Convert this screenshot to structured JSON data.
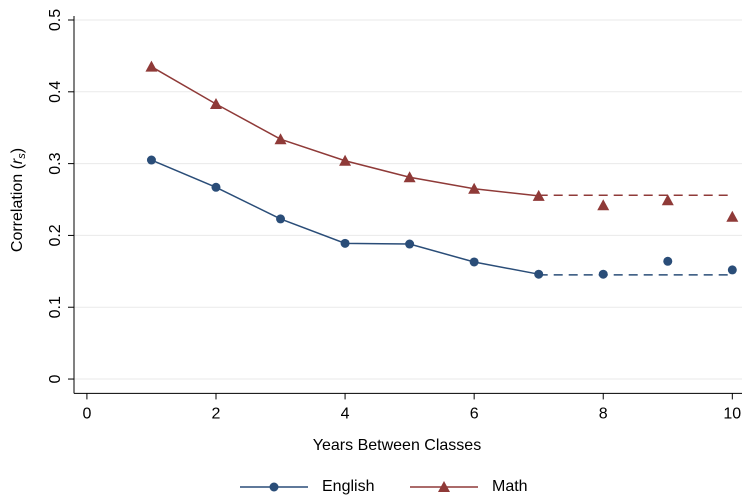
{
  "chart_data": {
    "type": "line",
    "x": [
      1,
      2,
      3,
      4,
      5,
      6,
      7,
      8,
      9,
      10
    ],
    "series": [
      {
        "name": "English",
        "color": "#2a4d78",
        "marker": "circle",
        "values": [
          0.305,
          0.267,
          0.223,
          0.189,
          0.188,
          0.163,
          0.146,
          0.146,
          0.164,
          0.152
        ],
        "plateau": {
          "from": 7,
          "to": 10,
          "value": 0.145
        }
      },
      {
        "name": "Math",
        "color": "#8f3a38",
        "marker": "triangle",
        "values": [
          0.435,
          0.383,
          0.334,
          0.304,
          0.281,
          0.265,
          0.255,
          0.242,
          0.249,
          0.226
        ],
        "plateau": {
          "from": 7,
          "to": 10,
          "value": 0.256
        }
      }
    ],
    "xlabel": "Years Between Classes",
    "ylabel_parts": [
      "Correlation (",
      "r",
      "s",
      ")"
    ],
    "xlim": [
      -0.2,
      10.15
    ],
    "xticks": [
      0,
      2,
      4,
      6,
      8,
      10
    ],
    "ylim": [
      -0.02,
      0.5
    ],
    "yticks": [
      0,
      0.1,
      0.2,
      0.3,
      0.4,
      0.5
    ],
    "grid": true,
    "legend": "bottom"
  }
}
